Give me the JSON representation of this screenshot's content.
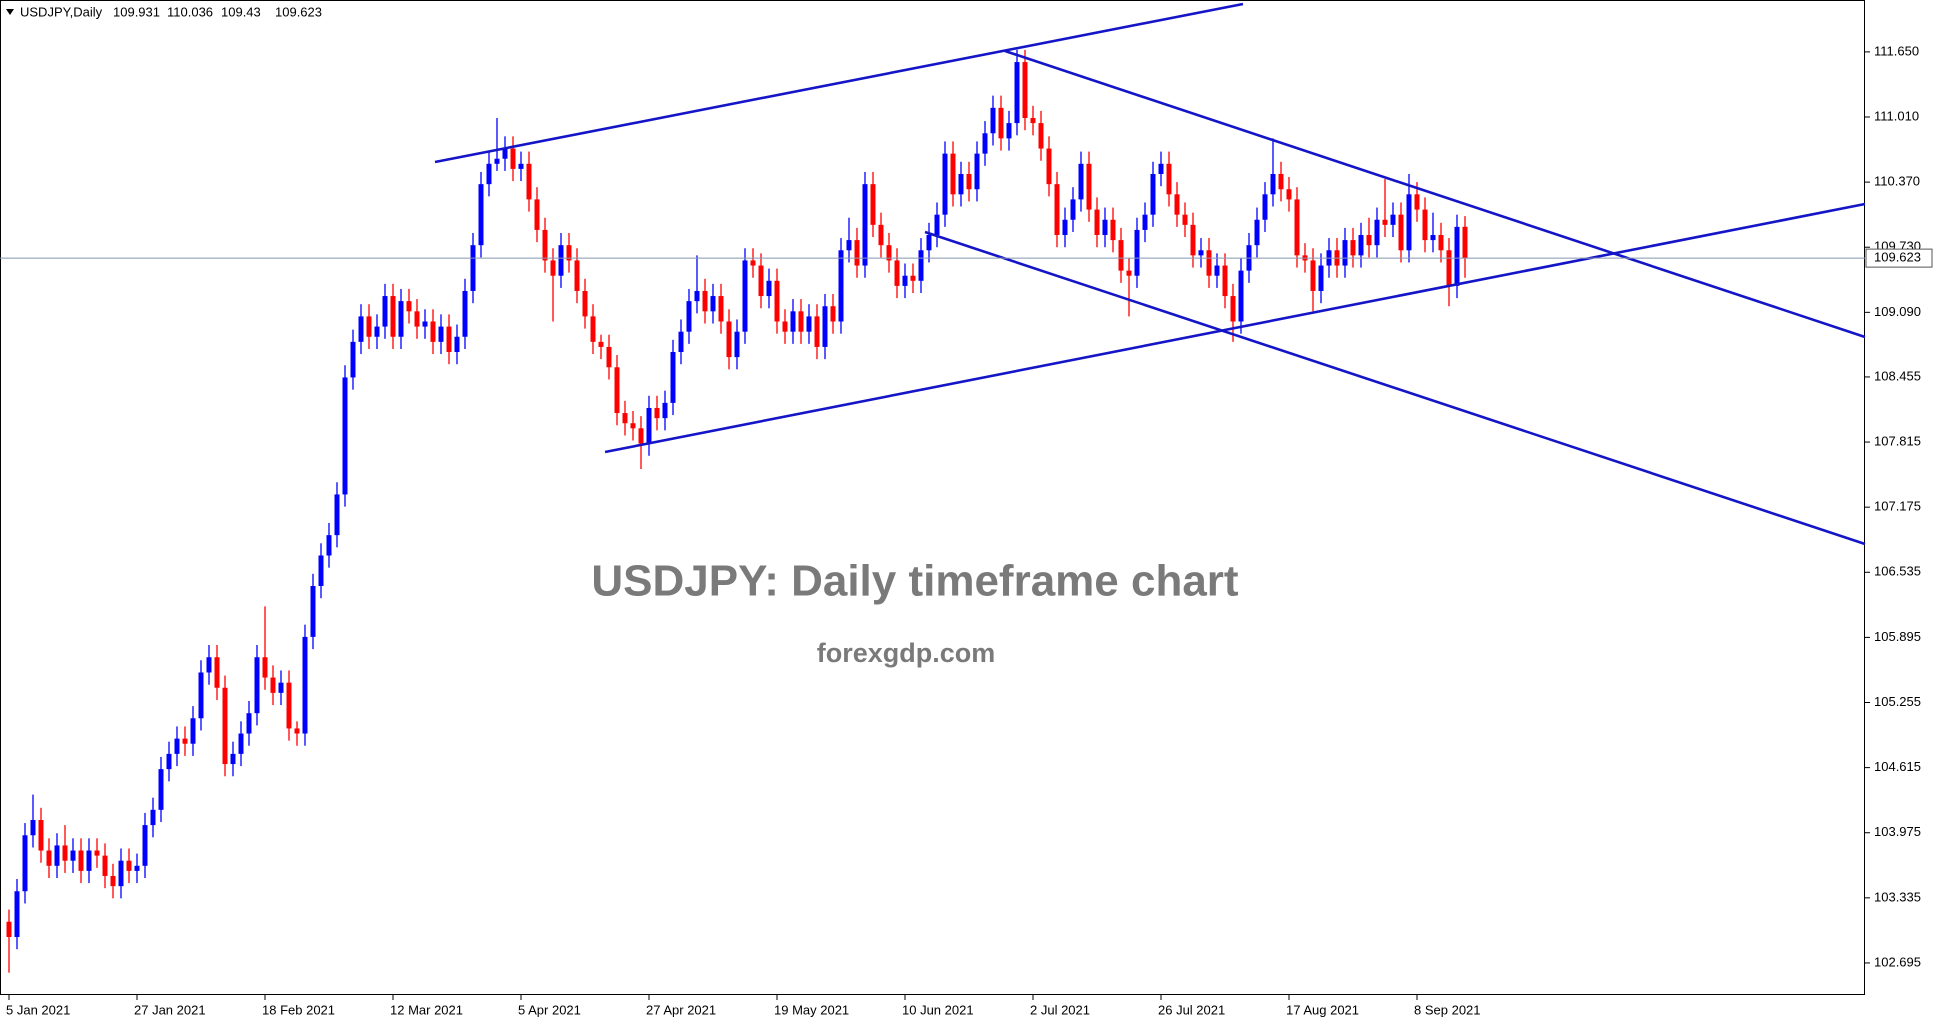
{
  "chart_data": {
    "type": "candlestick",
    "symbol_label": "USDJPY,Daily",
    "title": "USDJPY: Daily timeframe chart",
    "subtitle": "forexgdp.com",
    "up_color": "#0000ff",
    "down_color": "#ff0000",
    "price_line": true,
    "ylim": [
      102.38,
      112.16
    ],
    "yticks": [
      {
        "value": 111.65,
        "label": "111.650"
      },
      {
        "value": 111.01,
        "label": "111.010"
      },
      {
        "value": 110.37,
        "label": "110.370"
      },
      {
        "value": 109.73,
        "label": "109.730"
      },
      {
        "value": 109.09,
        "label": "109.090"
      },
      108.455,
      107.815,
      107.175,
      106.535,
      105.895,
      105.255,
      104.615,
      103.975,
      103.335,
      102.695
    ],
    "categories": [
      "5 Jan 2021",
      null,
      null,
      null,
      null,
      null,
      null,
      null,
      null,
      null,
      null,
      null,
      null,
      null,
      null,
      null,
      "27 Jan 2021",
      null,
      null,
      null,
      null,
      null,
      null,
      null,
      null,
      null,
      null,
      null,
      null,
      null,
      null,
      null,
      "18 Feb 2021",
      null,
      null,
      null,
      null,
      null,
      null,
      null,
      null,
      null,
      null,
      null,
      null,
      null,
      null,
      null,
      "12 Mar 2021",
      null,
      null,
      null,
      null,
      null,
      null,
      null,
      null,
      null,
      null,
      null,
      null,
      null,
      null,
      null,
      "5 Apr 2021",
      null,
      null,
      null,
      null,
      null,
      null,
      null,
      null,
      null,
      null,
      null,
      null,
      null,
      null,
      null,
      "27 Apr 2021",
      null,
      null,
      null,
      null,
      null,
      null,
      null,
      null,
      null,
      null,
      null,
      null,
      null,
      null,
      null,
      "19 May 2021",
      null,
      null,
      null,
      null,
      null,
      null,
      null,
      null,
      null,
      null,
      null,
      null,
      null,
      null,
      null,
      "10 Jun 2021",
      null,
      null,
      null,
      null,
      null,
      null,
      null,
      null,
      null,
      null,
      null,
      null,
      null,
      null,
      null,
      "2 Jul 2021",
      null,
      null,
      null,
      null,
      null,
      null,
      null,
      null,
      null,
      null,
      null,
      null,
      null,
      null,
      null,
      "26 Jul 2021",
      null,
      null,
      null,
      null,
      null,
      null,
      null,
      null,
      null,
      null,
      null,
      null,
      null,
      null,
      null,
      "17 Aug 2021",
      null,
      null,
      null,
      null,
      null,
      null,
      null,
      null,
      null,
      null,
      null,
      null,
      null,
      null,
      null,
      "8 Sep 2021",
      null,
      null,
      null,
      null,
      null,
      null
    ],
    "open": [
      103.1,
      102.95,
      103.4,
      103.95,
      104.1,
      103.8,
      103.65,
      103.85,
      103.7,
      103.8,
      103.6,
      103.8,
      103.75,
      103.55,
      103.45,
      103.7,
      103.6,
      103.65,
      104.05,
      104.2,
      104.6,
      104.75,
      104.9,
      104.85,
      105.1,
      105.55,
      105.7,
      105.4,
      104.65,
      104.75,
      104.95,
      105.15,
      105.7,
      105.5,
      105.35,
      105.45,
      105,
      104.95,
      105.9,
      106.4,
      106.7,
      106.9,
      107.3,
      108.45,
      108.8,
      109.05,
      108.85,
      108.95,
      109.25,
      108.85,
      109.2,
      109.1,
      108.95,
      109,
      108.8,
      108.95,
      108.7,
      108.85,
      109.3,
      109.75,
      110.35,
      110.55,
      110.6,
      110.7,
      110.5,
      110.55,
      110.2,
      109.9,
      109.6,
      109.45,
      109.75,
      109.6,
      109.3,
      109.05,
      108.8,
      108.75,
      108.55,
      108.1,
      108,
      107.95,
      107.8,
      108.15,
      108.05,
      108.2,
      108.7,
      108.9,
      109.2,
      109.3,
      109.1,
      109.25,
      109,
      108.65,
      108.9,
      109.6,
      109.55,
      109.25,
      109.4,
      109,
      108.9,
      109.1,
      108.9,
      109.05,
      108.75,
      109.15,
      109,
      109.7,
      109.8,
      109.55,
      110.35,
      109.95,
      109.75,
      109.6,
      109.35,
      109.45,
      109.4,
      109.7,
      109.85,
      110.05,
      110.65,
      110.25,
      110.45,
      110.3,
      110.65,
      110.85,
      111.1,
      110.8,
      110.95,
      111.55,
      111,
      110.95,
      110.7,
      110.35,
      109.85,
      110,
      110.2,
      110.55,
      110.1,
      109.85,
      110,
      109.8,
      109.5,
      109.45,
      109.9,
      110.05,
      110.45,
      110.55,
      110.25,
      110.05,
      109.95,
      109.65,
      109.7,
      109.45,
      109.55,
      109.25,
      109,
      109.5,
      109.75,
      110,
      110.25,
      110.45,
      110.3,
      110.2,
      109.65,
      109.6,
      109.3,
      109.55,
      109.7,
      109.55,
      109.8,
      109.65,
      109.85,
      109.75,
      110,
      109.95,
      110.05,
      109.7,
      110.25,
      110.1,
      109.8,
      109.85,
      109.7,
      109.35,
      109.931
    ],
    "high": [
      103.22,
      103.52,
      104.07,
      104.35,
      104.22,
      103.92,
      103.97,
      104.05,
      103.92,
      103.92,
      103.92,
      103.92,
      103.87,
      103.67,
      103.82,
      103.82,
      103.77,
      104.17,
      104.32,
      104.72,
      104.87,
      105.02,
      105.02,
      105.22,
      105.67,
      105.82,
      105.82,
      105.52,
      104.87,
      105.07,
      105.27,
      105.82,
      106.2,
      105.62,
      105.57,
      105.57,
      105.07,
      106.02,
      106.52,
      106.82,
      107.02,
      107.42,
      108.57,
      108.92,
      109.17,
      109.17,
      109.07,
      109.37,
      109.37,
      109.32,
      109.32,
      109.22,
      109.12,
      109.12,
      109.07,
      109.07,
      108.97,
      109.42,
      109.87,
      110.47,
      110.67,
      111,
      110.82,
      110.82,
      110.67,
      110.67,
      110.32,
      110.02,
      109.72,
      109.87,
      109.87,
      109.72,
      109.42,
      109.17,
      108.87,
      108.87,
      108.67,
      108.22,
      108.12,
      108.07,
      108.27,
      108.27,
      108.32,
      108.82,
      109.02,
      109.32,
      109.65,
      109.42,
      109.37,
      109.37,
      109.12,
      109.02,
      109.72,
      109.72,
      109.67,
      109.52,
      109.52,
      109.12,
      109.22,
      109.22,
      109.17,
      109.17,
      109.27,
      109.27,
      109.82,
      110.02,
      109.92,
      110.47,
      110.47,
      110.07,
      109.87,
      109.72,
      109.57,
      109.57,
      109.82,
      109.97,
      110.17,
      110.77,
      110.77,
      110.57,
      110.57,
      110.77,
      110.97,
      111.22,
      111.22,
      111.07,
      111.67,
      111.67,
      111.12,
      111.07,
      110.82,
      110.47,
      110.12,
      110.32,
      110.67,
      110.67,
      110.22,
      110.12,
      110.12,
      109.92,
      109.62,
      110.02,
      110.17,
      110.57,
      110.67,
      110.67,
      110.37,
      110.17,
      110.07,
      109.82,
      109.82,
      109.67,
      109.67,
      109.37,
      109.62,
      109.87,
      110.12,
      110.37,
      110.8,
      110.57,
      110.42,
      110.32,
      109.77,
      109.72,
      109.67,
      109.82,
      109.82,
      109.92,
      109.92,
      109.97,
      110.02,
      110.12,
      110.4,
      110.17,
      110.17,
      110.45,
      110.37,
      110.22,
      110.07,
      109.97,
      109.82,
      110.05,
      110.036
    ],
    "low": [
      102.6,
      102.83,
      103.28,
      103.83,
      103.68,
      103.53,
      103.53,
      103.58,
      103.58,
      103.48,
      103.48,
      103.63,
      103.43,
      103.33,
      103.33,
      103.48,
      103.48,
      103.53,
      103.93,
      104.08,
      104.48,
      104.63,
      104.73,
      104.73,
      104.98,
      105.43,
      105.28,
      104.53,
      104.53,
      104.63,
      104.83,
      105.03,
      105.38,
      105.23,
      105.23,
      104.88,
      104.83,
      104.83,
      105.78,
      106.28,
      106.58,
      106.78,
      107.18,
      108.33,
      108.68,
      108.73,
      108.73,
      108.83,
      108.73,
      108.73,
      108.98,
      108.83,
      108.83,
      108.68,
      108.68,
      108.58,
      108.58,
      108.73,
      109.18,
      109.63,
      110.23,
      110.48,
      110.48,
      110.38,
      110.38,
      110.08,
      109.78,
      109.48,
      109,
      109.33,
      109.48,
      109.18,
      108.93,
      108.68,
      108.63,
      108.43,
      107.98,
      107.88,
      107.83,
      107.55,
      107.68,
      107.93,
      107.93,
      108.08,
      108.58,
      108.78,
      109.08,
      108.98,
      108.98,
      108.88,
      108.53,
      108.53,
      108.78,
      109.43,
      109.13,
      109.13,
      108.88,
      108.78,
      108.78,
      108.78,
      108.78,
      108.63,
      108.63,
      108.88,
      108.88,
      109.58,
      109.43,
      109.43,
      109.83,
      109.63,
      109.48,
      109.23,
      109.23,
      109.28,
      109.28,
      109.58,
      109.73,
      109.93,
      110.13,
      110.13,
      110.18,
      110.18,
      110.53,
      110.73,
      110.68,
      110.68,
      110.83,
      110.88,
      110.83,
      110.58,
      110.23,
      109.73,
      109.73,
      109.88,
      110.08,
      109.98,
      109.73,
      109.73,
      109.68,
      109.38,
      109.05,
      109.33,
      109.78,
      109.93,
      110.33,
      110.13,
      109.93,
      109.83,
      109.53,
      109.53,
      109.33,
      109.33,
      109.13,
      108.8,
      108.88,
      109.38,
      109.63,
      109.88,
      110.13,
      110.18,
      110.08,
      109.53,
      109.48,
      109.1,
      109.18,
      109.43,
      109.43,
      109.43,
      109.53,
      109.53,
      109.63,
      109.63,
      109.83,
      109.83,
      109.58,
      109.58,
      109.98,
      109.68,
      109.68,
      109.58,
      109.15,
      109.23,
      109.43
    ],
    "close": [
      102.95,
      103.4,
      103.95,
      104.1,
      103.8,
      103.65,
      103.85,
      103.7,
      103.8,
      103.6,
      103.8,
      103.75,
      103.55,
      103.45,
      103.7,
      103.6,
      103.65,
      104.05,
      104.2,
      104.6,
      104.75,
      104.9,
      104.85,
      105.1,
      105.55,
      105.7,
      105.4,
      104.65,
      104.75,
      104.95,
      105.15,
      105.7,
      105.5,
      105.35,
      105.45,
      105,
      104.95,
      105.9,
      106.4,
      106.7,
      106.9,
      107.3,
      108.45,
      108.8,
      109.05,
      108.85,
      108.95,
      109.25,
      108.85,
      109.2,
      109.1,
      108.95,
      109,
      108.8,
      108.95,
      108.7,
      108.85,
      109.3,
      109.75,
      110.35,
      110.55,
      110.6,
      110.7,
      110.5,
      110.55,
      110.2,
      109.9,
      109.6,
      109.45,
      109.75,
      109.6,
      109.3,
      109.05,
      108.8,
      108.75,
      108.55,
      108.1,
      108,
      107.95,
      107.8,
      108.15,
      108.05,
      108.2,
      108.7,
      108.9,
      109.2,
      109.3,
      109.1,
      109.25,
      109,
      108.65,
      108.9,
      109.6,
      109.55,
      109.25,
      109.4,
      109,
      108.9,
      109.1,
      108.9,
      109.05,
      108.75,
      109.15,
      109,
      109.7,
      109.8,
      109.55,
      110.35,
      109.95,
      109.75,
      109.6,
      109.35,
      109.45,
      109.4,
      109.7,
      109.85,
      110.05,
      110.65,
      110.25,
      110.45,
      110.3,
      110.65,
      110.85,
      111.1,
      110.8,
      110.95,
      111.55,
      111,
      110.95,
      110.7,
      110.35,
      109.85,
      110,
      110.2,
      110.55,
      110.1,
      109.85,
      110,
      109.8,
      109.5,
      109.45,
      109.9,
      110.05,
      110.45,
      110.55,
      110.25,
      110.05,
      109.95,
      109.65,
      109.7,
      109.45,
      109.55,
      109.25,
      109,
      109.5,
      109.75,
      110,
      110.25,
      110.45,
      110.3,
      110.2,
      109.65,
      109.6,
      109.3,
      109.55,
      109.7,
      109.55,
      109.8,
      109.65,
      109.85,
      109.75,
      110,
      109.95,
      110.05,
      109.7,
      110.25,
      110.1,
      109.8,
      109.85,
      109.7,
      109.35,
      109.93,
      109.623
    ]
  }
}
